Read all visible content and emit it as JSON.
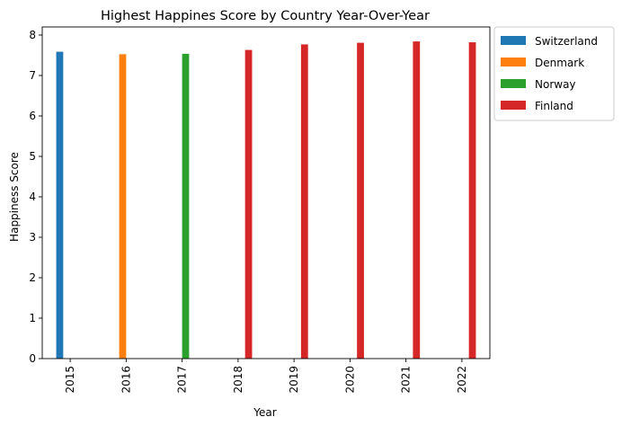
{
  "chart_data": {
    "type": "bar",
    "title": "Highest Happines Score by Country Year-Over-Year",
    "xlabel": "Year",
    "ylabel": "Happiness Score",
    "categories": [
      "2015",
      "2016",
      "2017",
      "2018",
      "2019",
      "2020",
      "2021",
      "2022"
    ],
    "ylim": [
      0,
      8.2
    ],
    "yticks": [
      0,
      1,
      2,
      3,
      4,
      5,
      6,
      7,
      8
    ],
    "grid": false,
    "legend_position": "outside-top-right",
    "series": [
      {
        "name": "Switzerland",
        "color": "#1f77b4",
        "values": [
          7.587,
          null,
          null,
          null,
          null,
          null,
          null,
          null
        ]
      },
      {
        "name": "Denmark",
        "color": "#ff7f0e",
        "values": [
          null,
          7.526,
          null,
          null,
          null,
          null,
          null,
          null
        ]
      },
      {
        "name": "Norway",
        "color": "#2ca02c",
        "values": [
          null,
          null,
          7.537,
          null,
          null,
          null,
          null,
          null
        ]
      },
      {
        "name": "Finland",
        "color": "#d62728",
        "values": [
          null,
          null,
          null,
          7.632,
          7.769,
          7.809,
          7.842,
          7.821
        ]
      }
    ]
  }
}
